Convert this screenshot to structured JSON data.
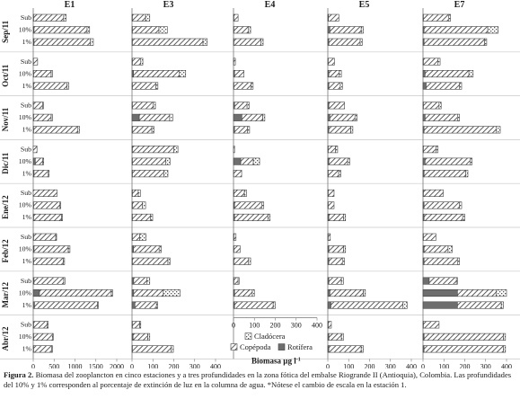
{
  "chart_data": {
    "type": "bar",
    "orientation": "horizontal",
    "stacked": true,
    "stations": [
      "E1",
      "E3",
      "E4",
      "E5",
      "E7"
    ],
    "months": [
      "Sep/11",
      "Oct/11",
      "Nov/11",
      "Dic/11",
      "Ene/12",
      "Feb/12",
      "Mar/12",
      "Abr/12"
    ],
    "depths": [
      "Sub",
      "10%",
      "1%"
    ],
    "xlim": {
      "E1": [
        0,
        2000
      ],
      "E3": [
        0,
        400
      ],
      "E4": [
        0,
        400
      ],
      "E5": [
        0,
        400
      ],
      "E7": [
        0,
        400
      ]
    },
    "xticks": {
      "E1": [
        "0",
        "500",
        "1000",
        "1500",
        "2000"
      ],
      "E3": [
        "0",
        "100",
        "200",
        "300",
        "400"
      ],
      "E4": [
        "0",
        "100",
        "200",
        "300",
        "400"
      ],
      "E5": [
        "0",
        "100",
        "200",
        "300",
        "400"
      ],
      "E7": [
        "0",
        "100",
        "200",
        "300",
        "400"
      ]
    },
    "xlabel": "Biomasa µg l",
    "xlabel_sup": "-1",
    "legend": {
      "items": [
        "Cladócera",
        "Copépoda",
        "Rotífera"
      ],
      "position": "bottom"
    },
    "series_order": [
      "Rotífera",
      "Copépoda",
      "Cladócera"
    ],
    "series_colors": {
      "Rotífera": "#6e6e6e",
      "Copépoda": "hatch",
      "Cladócera": "dots"
    },
    "data": {
      "E1": {
        "Sep/11": [
          [
            10,
            720,
            60
          ],
          [
            20,
            1270,
            60
          ],
          [
            20,
            1350,
            70
          ]
        ],
        "Oct/11": [
          [
            5,
            100,
            0
          ],
          [
            10,
            420,
            30
          ],
          [
            10,
            800,
            40
          ]
        ],
        "Nov/11": [
          [
            5,
            220,
            20
          ],
          [
            10,
            420,
            30
          ],
          [
            10,
            1060,
            40
          ]
        ],
        "Dic/11": [
          [
            0,
            90,
            0
          ],
          [
            50,
            180,
            20
          ],
          [
            20,
            330,
            30
          ]
        ],
        "Ene/12": [
          [
            0,
            570,
            0
          ],
          [
            10,
            630,
            20
          ],
          [
            10,
            670,
            20
          ]
        ],
        "Feb/12": [
          [
            10,
            530,
            20
          ],
          [
            20,
            820,
            40
          ],
          [
            10,
            710,
            30
          ]
        ],
        "Mar/12": [
          [
            20,
            710,
            30
          ],
          [
            150,
            1720,
            30
          ],
          [
            30,
            1510,
            20
          ]
        ],
        "Abr/12": [
          [
            10,
            320,
            30
          ],
          [
            10,
            450,
            20
          ],
          [
            10,
            430,
            20
          ]
        ]
      },
      "E3": {
        "Sep/11": [
          [
            2,
            63,
            20
          ],
          [
            2,
            127,
            40
          ],
          [
            2,
            338,
            20
          ]
        ],
        "Oct/11": [
          [
            2,
            40,
            10
          ],
          [
            7,
            220,
            30
          ],
          [
            2,
            112,
            10
          ]
        ],
        "Nov/11": [
          [
            2,
            100,
            10
          ],
          [
            35,
            145,
            15
          ],
          [
            2,
            93,
            10
          ]
        ],
        "Dic/11": [
          [
            2,
            198,
            20
          ],
          [
            2,
            160,
            20
          ],
          [
            2,
            150,
            20
          ]
        ],
        "Ene/12": [
          [
            2,
            28,
            10
          ],
          [
            2,
            48,
            15
          ],
          [
            2,
            87,
            10
          ]
        ],
        "Feb/12": [
          [
            2,
            35,
            30
          ],
          [
            7,
            123,
            10
          ],
          [
            2,
            170,
            10
          ]
        ],
        "Mar/12": [
          [
            8,
            64,
            13
          ],
          [
            8,
            142,
            80
          ],
          [
            14,
            103,
            6
          ]
        ],
        "Abr/12": [
          [
            2,
            35,
            5
          ],
          [
            5,
            70,
            10
          ],
          [
            2,
            186,
            10
          ]
        ]
      },
      "E4": {
        "Sep/11": [
          [
            2,
            20,
            0
          ],
          [
            2,
            70,
            10
          ],
          [
            2,
            130,
            10
          ]
        ],
        "Oct/11": [
          [
            1,
            8,
            0
          ],
          [
            5,
            45,
            0
          ],
          [
            2,
            82,
            10
          ]
        ],
        "Nov/11": [
          [
            5,
            60,
            10
          ],
          [
            40,
            100,
            10
          ],
          [
            5,
            62,
            10
          ]
        ],
        "Dic/11": [
          [
            0,
            5,
            0
          ],
          [
            35,
            60,
            30
          ],
          [
            1,
            38,
            0
          ]
        ],
        "Ene/12": [
          [
            2,
            50,
            10
          ],
          [
            5,
            130,
            10
          ],
          [
            5,
            160,
            10
          ]
        ],
        "Feb/12": [
          [
            2,
            10,
            0
          ],
          [
            2,
            30,
            0
          ],
          [
            2,
            70,
            10
          ]
        ],
        "Mar/12": [
          [
            2,
            20,
            5
          ],
          [
            5,
            85,
            10
          ],
          [
            5,
            185,
            10
          ]
        ],
        "Abr/12": [
          [
            0,
            0,
            0
          ],
          [
            0,
            0,
            0
          ],
          [
            0,
            0,
            0
          ]
        ]
      },
      "E5": {
        "Sep/11": [
          [
            3,
            50,
            0
          ],
          [
            10,
            150,
            10
          ],
          [
            5,
            150,
            10
          ]
        ],
        "Oct/11": [
          [
            2,
            30,
            0
          ],
          [
            5,
            50,
            10
          ],
          [
            5,
            55,
            10
          ]
        ],
        "Nov/11": [
          [
            5,
            75,
            0
          ],
          [
            10,
            120,
            10
          ],
          [
            5,
            105,
            10
          ]
        ],
        "Dic/11": [
          [
            2,
            35,
            10
          ],
          [
            5,
            90,
            10
          ],
          [
            2,
            50,
            10
          ]
        ],
        "Ene/12": [
          [
            2,
            28,
            0
          ],
          [
            2,
            28,
            0
          ],
          [
            5,
            70,
            10
          ]
        ],
        "Feb/12": [
          [
            2,
            10,
            0
          ],
          [
            5,
            70,
            10
          ],
          [
            5,
            65,
            10
          ]
        ],
        "Mar/12": [
          [
            5,
            60,
            10
          ],
          [
            10,
            160,
            10
          ],
          [
            15,
            345,
            20
          ]
        ],
        "Abr/12": [
          [
            2,
            15,
            0
          ],
          [
            5,
            60,
            10
          ],
          [
            5,
            155,
            10
          ]
        ]
      },
      "E7": {
        "Sep/11": [
          [
            2,
            120,
            10
          ],
          [
            5,
            305,
            50
          ],
          [
            5,
            290,
            10
          ]
        ],
        "Oct/11": [
          [
            2,
            70,
            10
          ],
          [
            10,
            210,
            20
          ],
          [
            15,
            160,
            10
          ]
        ],
        "Nov/11": [
          [
            2,
            75,
            10
          ],
          [
            10,
            155,
            10
          ],
          [
            5,
            345,
            20
          ]
        ],
        "Dic/11": [
          [
            2,
            60,
            10
          ],
          [
            10,
            215,
            10
          ],
          [
            5,
            200,
            10
          ]
        ],
        "Ene/12": [
          [
            2,
            95,
            0
          ],
          [
            5,
            170,
            10
          ],
          [
            5,
            185,
            10
          ]
        ],
        "Feb/12": [
          [
            2,
            60,
            0
          ],
          [
            5,
            115,
            20
          ],
          [
            5,
            160,
            10
          ]
        ],
        "Mar/12": [
          [
            30,
            130,
            5
          ],
          [
            165,
            185,
            50
          ],
          [
            165,
            210,
            10
          ]
        ],
        "Abr/12": [
          [
            2,
            75,
            0
          ],
          [
            5,
            380,
            10
          ],
          [
            5,
            380,
            10
          ]
        ]
      }
    }
  },
  "caption": {
    "label": "Figura 2.",
    "text": " Biomasa del zooplancton en cinco estaciones y a tres profundidades en la zona fótica del embalse Riogrande II (Antioquia), Colombia. Las profundidades del 10% y 1% corresponden al porcentaje de extinción de luz en la columna de agua. *Nótese el cambio de escala en la estación 1."
  }
}
